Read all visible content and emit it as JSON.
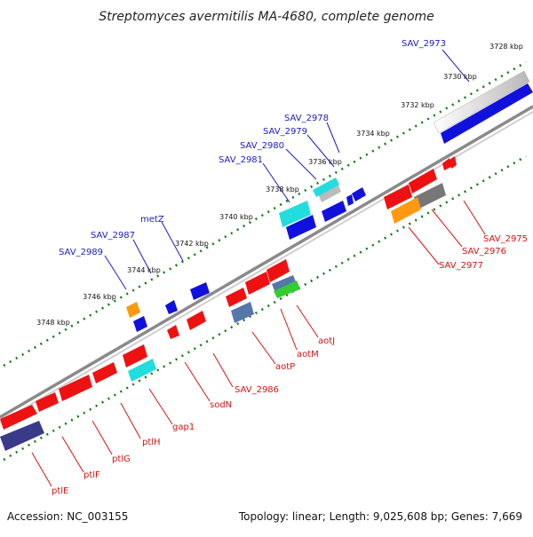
{
  "title": "Streptomyces avermitilis MA-4680, complete genome",
  "footer": {
    "accession": "Accession: NC_003155",
    "summary": "Topology: linear; Length: 9,025,608 bp; Genes: 7,669"
  },
  "ticks": [
    "3728 kbp",
    "3730 kbp",
    "3732 kbp",
    "3734 kbp",
    "3736 kbp",
    "3738 kbp",
    "3740 kbp",
    "3742 kbp",
    "3744 kbp",
    "3746 kbp",
    "3748 kbp"
  ],
  "upper_gene_labels": [
    "SAV_2973",
    "SAV_2978",
    "SAV_2979",
    "SAV_2980",
    "SAV_2981",
    "metZ",
    "SAV_2987",
    "SAV_2989"
  ],
  "lower_gene_labels": [
    "SAV_2975",
    "SAV_2976",
    "SAV_2977",
    "aotJ",
    "aotM",
    "aotP",
    "SAV_2986",
    "sodN",
    "gap1",
    "ptlH",
    "ptlG",
    "ptlF",
    "ptlE"
  ],
  "colors": {
    "red": "#ee1111",
    "blue": "#1111dd",
    "cyan": "#22dddd",
    "orange": "#ff9911",
    "gray": "#777777",
    "steel": "#5577aa",
    "green": "#33cc33",
    "navy": "#3a3a8a",
    "silver": "#c8c8c8",
    "tick": "#117711"
  }
}
